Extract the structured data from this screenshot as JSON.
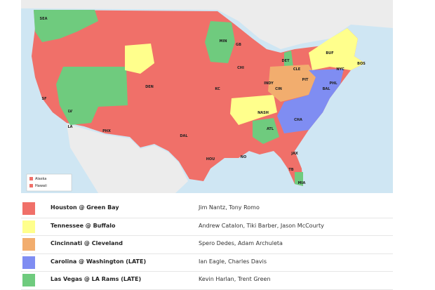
{
  "map": {
    "city_labels": [
      "SEA",
      "SF",
      "LV",
      "LA",
      "PHX",
      "DEN",
      "MIN",
      "GB",
      "CHI",
      "DET",
      "CLE",
      "BUF",
      "BOS",
      "NYC",
      "PHL",
      "BAL",
      "PIT",
      "CIN",
      "INDY",
      "NASH",
      "ATL",
      "CHA",
      "JAX",
      "TB",
      "MIA",
      "NO",
      "HOU",
      "DAL",
      "KC"
    ],
    "inset_legend": [
      "Alaska",
      "Hawaii"
    ]
  },
  "legend": {
    "rows": [
      {
        "color": "#f07069",
        "game": "Houston @ Green Bay",
        "announcers": "Jim Nantz, Tony Romo"
      },
      {
        "color": "#ffff8c",
        "game": "Tennessee @ Buffalo",
        "announcers": "Andrew Catalon, Tiki Barber, Jason McCourty"
      },
      {
        "color": "#f2ad6e",
        "game": "Cincinnati @ Cleveland",
        "announcers": "Spero Dedes, Adam Archuleta"
      },
      {
        "color": "#7f8df2",
        "game": "Carolina @ Washington (LATE)",
        "announcers": "Ian Eagle, Charles Davis"
      },
      {
        "color": "#6fcb7e",
        "game": "Las Vegas @ LA Rams (LATE)",
        "announcers": "Kevin Harlan, Trent Green"
      }
    ]
  }
}
